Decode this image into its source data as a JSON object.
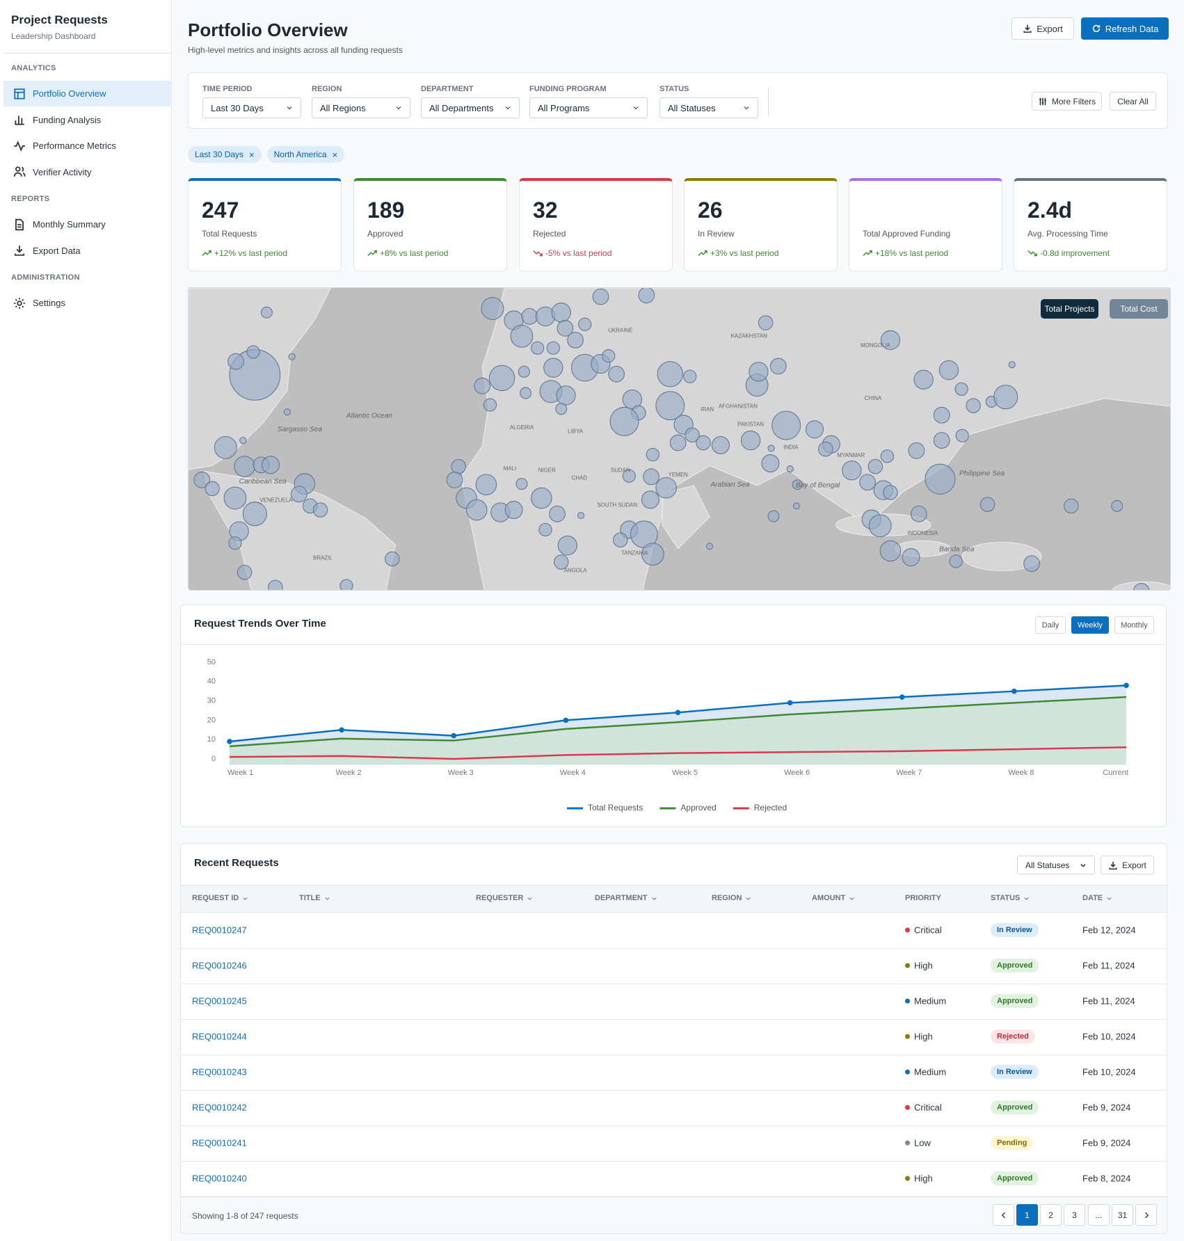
{
  "sidebar": {
    "title": "Project Requests",
    "subtitle": "Leadership Dashboard",
    "sections": [
      {
        "heading": "ANALYTICS",
        "items": [
          {
            "label": "Portfolio Overview",
            "active": true
          },
          {
            "label": "Funding Analysis"
          },
          {
            "label": "Performance Metrics"
          },
          {
            "label": "Verifier Activity"
          }
        ]
      },
      {
        "heading": "REPORTS",
        "items": [
          {
            "label": "Monthly Summary"
          },
          {
            "label": "Export Data"
          }
        ]
      },
      {
        "heading": "ADMINISTRATION",
        "items": [
          {
            "label": "Settings"
          }
        ]
      }
    ]
  },
  "header": {
    "title": "Portfolio Overview",
    "subtitle": "High-level metrics and insights across all funding requests",
    "export": "Export",
    "refresh": "Refresh Data"
  },
  "filters": {
    "fields": [
      {
        "label": "TIME PERIOD",
        "value": "Last 30 Days"
      },
      {
        "label": "REGION",
        "value": "All Regions"
      },
      {
        "label": "DEPARTMENT",
        "value": "All Departments"
      },
      {
        "label": "FUNDING PROGRAM",
        "value": "All Programs"
      },
      {
        "label": "STATUS",
        "value": "All Statuses"
      }
    ],
    "more": "More Filters",
    "clear": "Clear All"
  },
  "chips": [
    "Last 30 Days",
    "North America"
  ],
  "kpis": [
    {
      "value": 247,
      "label": "Total Requests",
      "change": "+12% vs last period",
      "direction": "up",
      "tone": "positive",
      "accent": "#0b6fc0"
    },
    {
      "value": 189,
      "label": "Approved",
      "change": "+8% vs last period",
      "direction": "up",
      "tone": "positive",
      "accent": "#3d8b2f"
    },
    {
      "value": 32,
      "label": "Rejected",
      "change": "-5% vs last period",
      "direction": "down",
      "tone": "negative",
      "accent": "#d8394a"
    },
    {
      "value": 26,
      "label": "In Review",
      "change": "+3% vs last period",
      "direction": "up",
      "tone": "positive",
      "accent": "#8a7a06"
    },
    {
      "label": "Total Approved Funding",
      "change": "+18% vs last period",
      "direction": "up",
      "tone": "positive",
      "accent": "#a46ef0"
    },
    {
      "value": "2.4d",
      "label": "Avg. Processing Time",
      "change": "-0.8d improvement",
      "direction": "down",
      "tone": "positive",
      "accent": "#6b7280"
    }
  ],
  "map": {
    "toggles": [
      {
        "label": "Total Projects",
        "active": true
      },
      {
        "label": "Total Cost"
      }
    ],
    "labels": [
      "Atlantic Ocean",
      "CHINA",
      "INDIA",
      "BRAZIL",
      "KAZAKHSTAN",
      "MONGOLIA",
      "LIBYA",
      "ALGERIA",
      "NIGER",
      "CHAD",
      "MALI",
      "IRAN",
      "YEMEN",
      "UKRAINE",
      "Arabian Sea",
      "Bay of Bengal",
      "Philippine Sea",
      "Caribbean Sea",
      "Sargasso Sea",
      "INDONESIA",
      "ANGOLA",
      "TANZANIA",
      "SUDAN",
      "AFGHANISTAN",
      "PAKISTAN",
      "MYANMAR",
      "VENEZUELA",
      "Banda Sea",
      "SOUTH SUDAN"
    ]
  },
  "trends": {
    "title": "Request Trends Over Time",
    "toggles": [
      {
        "label": "Daily"
      },
      {
        "label": "Weekly",
        "active": true
      },
      {
        "label": "Monthly"
      }
    ]
  },
  "chart_data": {
    "type": "line",
    "categories": [
      "Week 1",
      "Week 2",
      "Week 3",
      "Week 4",
      "Week 5",
      "Week 6",
      "Week 7",
      "Week 8",
      "Current"
    ],
    "series": [
      {
        "name": "Total Requests",
        "color": "#0b6fc0",
        "fill": "#dbe8f3",
        "markers": true,
        "values": [
          9,
          15,
          12,
          20,
          24,
          29,
          32,
          35,
          38
        ]
      },
      {
        "name": "Approved",
        "color": "#3d8b2f",
        "fill": "#d0e4dc",
        "values": [
          6.5,
          10.5,
          9.5,
          15.5,
          19,
          23,
          26,
          29,
          32
        ]
      },
      {
        "name": "Rejected",
        "color": "#d8394a",
        "values": [
          1,
          1.5,
          0,
          2,
          3,
          3.5,
          4,
          5,
          6
        ]
      }
    ],
    "ylim": [
      -3,
      50
    ],
    "yticks": [
      0,
      10,
      20,
      30,
      40,
      50
    ],
    "grid": false,
    "legend": "bottom"
  },
  "table": {
    "title": "Recent Requests",
    "filter": "All Statuses",
    "export": "Export",
    "columns": [
      {
        "label": "REQUEST ID",
        "sortable": true
      },
      {
        "label": "TITLE",
        "sortable": true
      },
      {
        "label": "REQUESTER",
        "sortable": true
      },
      {
        "label": "DEPARTMENT",
        "sortable": true
      },
      {
        "label": "REGION",
        "sortable": true
      },
      {
        "label": "AMOUNT",
        "sortable": true
      },
      {
        "label": "PRIORITY"
      },
      {
        "label": "STATUS",
        "sortable": true
      },
      {
        "label": "DATE",
        "sortable": true
      }
    ],
    "rows": [
      {
        "id": "REQ0010247",
        "priority": "Critical",
        "status": "In Review",
        "date": "Feb 12, 2024"
      },
      {
        "id": "REQ0010246",
        "priority": "High",
        "status": "Approved",
        "date": "Feb 11, 2024"
      },
      {
        "id": "REQ0010245",
        "priority": "Medium",
        "status": "Approved",
        "date": "Feb 11, 2024"
      },
      {
        "id": "REQ0010244",
        "priority": "High",
        "status": "Rejected",
        "date": "Feb 10, 2024"
      },
      {
        "id": "REQ0010243",
        "priority": "Medium",
        "status": "In Review",
        "date": "Feb 10, 2024"
      },
      {
        "id": "REQ0010242",
        "priority": "Critical",
        "status": "Approved",
        "date": "Feb 9, 2024"
      },
      {
        "id": "REQ0010241",
        "priority": "Low",
        "status": "Pending",
        "date": "Feb 9, 2024"
      },
      {
        "id": "REQ0010240",
        "priority": "High",
        "status": "Approved",
        "date": "Feb 8, 2024"
      }
    ],
    "footer": "Showing 1-8 of 247 requests",
    "pages": [
      1,
      2,
      3,
      "...",
      31
    ],
    "current_page": 1
  }
}
